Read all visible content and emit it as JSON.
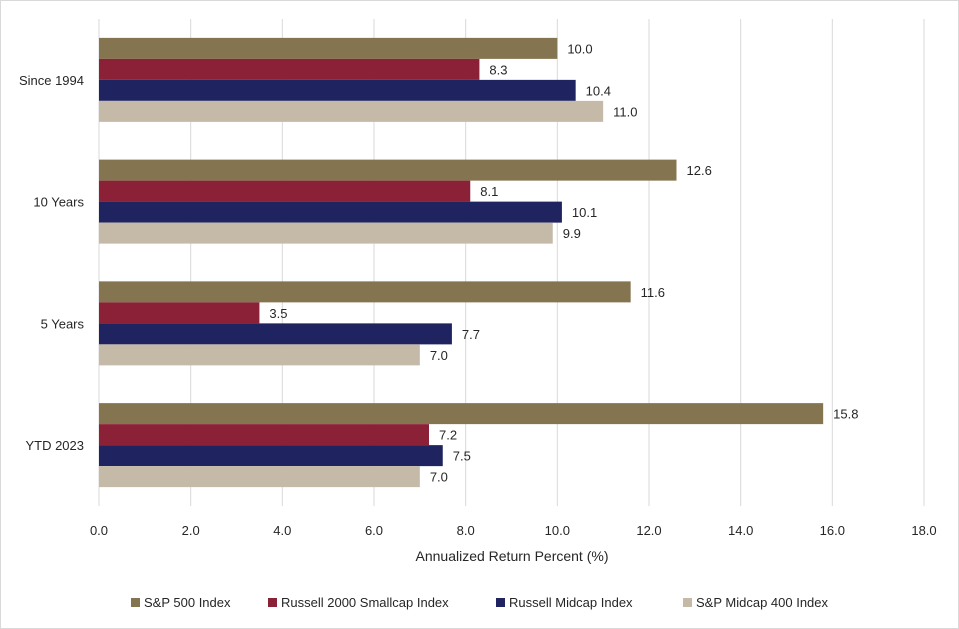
{
  "chart_data": {
    "type": "bar",
    "orientation": "horizontal",
    "categories": [
      "Since 1994",
      "10 Years",
      "5 Years",
      "YTD 2023"
    ],
    "series": [
      {
        "name": "S&P 500 Index",
        "color": "#857450",
        "values": [
          10.0,
          12.6,
          11.6,
          15.8
        ]
      },
      {
        "name": "Russell 2000 Smallcap Index",
        "color": "#8b2136",
        "values": [
          8.3,
          8.1,
          3.5,
          7.2
        ]
      },
      {
        "name": "Russell Midcap Index",
        "color": "#1f2460",
        "values": [
          10.4,
          10.1,
          7.7,
          7.5
        ]
      },
      {
        "name": "S&P Midcap 400 Index",
        "color": "#c5baa8",
        "values": [
          11.0,
          9.9,
          7.0,
          7.0
        ]
      }
    ],
    "data_labels": [
      [
        "10.0",
        "8.3",
        "10.4",
        "11.0"
      ],
      [
        "12.6",
        "8.1",
        "10.1",
        "9.9"
      ],
      [
        "11.6",
        "3.5",
        "7.7",
        "7.0"
      ],
      [
        "15.8",
        "7.2",
        "7.5",
        "7.0"
      ]
    ],
    "xlabel": "Annualized Return Percent (%)",
    "ylabel": "",
    "xlim": [
      0,
      18
    ],
    "xticks": [
      "0.0",
      "2.0",
      "4.0",
      "6.0",
      "8.0",
      "10.0",
      "12.0",
      "14.0",
      "16.0",
      "18.0"
    ],
    "grid": "vertical",
    "legend_position": "bottom"
  }
}
